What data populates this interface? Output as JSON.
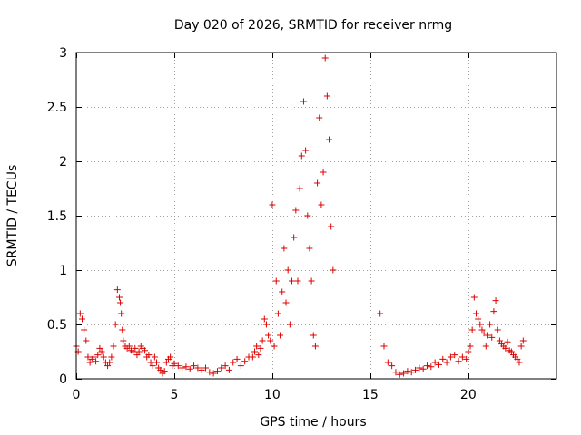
{
  "chart_data": {
    "type": "scatter",
    "title": "Day 020 of 2026, SRMTID for receiver nrmg",
    "xlabel": "GPS time / hours",
    "ylabel": "SRMTID / TECUs",
    "xlim": [
      0,
      24.5
    ],
    "ylim": [
      0,
      3
    ],
    "xticks": [
      0,
      5,
      10,
      15,
      20
    ],
    "xtick_labels": [
      "0",
      "5",
      "10",
      "15",
      "20"
    ],
    "yticks": [
      0,
      0.5,
      1,
      1.5,
      2,
      2.5,
      3
    ],
    "ytick_labels": [
      "0",
      "0.5",
      "1",
      "1.5",
      "2",
      "2.5",
      "3"
    ],
    "grid": true,
    "marker": "plus",
    "color": "#dd0000",
    "series": [
      {
        "name": "SRMTID",
        "x": [
          0.0,
          0.1,
          0.2,
          0.3,
          0.4,
          0.5,
          0.6,
          0.7,
          0.8,
          0.9,
          1.0,
          1.1,
          1.2,
          1.3,
          1.4,
          1.5,
          1.6,
          1.7,
          1.8,
          1.9,
          2.0,
          2.1,
          2.2,
          2.25,
          2.3,
          2.35,
          2.4,
          2.5,
          2.6,
          2.7,
          2.8,
          2.9,
          3.0,
          3.1,
          3.2,
          3.3,
          3.4,
          3.5,
          3.6,
          3.7,
          3.8,
          3.9,
          4.0,
          4.1,
          4.2,
          4.3,
          4.4,
          4.5,
          4.6,
          4.7,
          4.8,
          4.9,
          5.0,
          5.2,
          5.4,
          5.6,
          5.8,
          6.0,
          6.2,
          6.4,
          6.6,
          6.8,
          7.0,
          7.2,
          7.4,
          7.6,
          7.8,
          8.0,
          8.2,
          8.4,
          8.6,
          8.8,
          9.0,
          9.1,
          9.2,
          9.3,
          9.4,
          9.5,
          9.6,
          9.7,
          9.8,
          9.9,
          10.0,
          10.1,
          10.2,
          10.3,
          10.4,
          10.5,
          10.6,
          10.7,
          10.8,
          10.9,
          11.0,
          11.1,
          11.2,
          11.3,
          11.4,
          11.5,
          11.6,
          11.7,
          11.8,
          11.9,
          12.0,
          12.1,
          12.2,
          12.3,
          12.4,
          12.5,
          12.6,
          12.7,
          12.8,
          12.9,
          13.0,
          13.1,
          15.5,
          15.7,
          15.9,
          16.1,
          16.3,
          16.5,
          16.7,
          16.9,
          17.1,
          17.3,
          17.5,
          17.7,
          17.9,
          18.1,
          18.3,
          18.5,
          18.7,
          18.9,
          19.1,
          19.3,
          19.5,
          19.7,
          19.9,
          20.0,
          20.1,
          20.2,
          20.3,
          20.4,
          20.5,
          20.6,
          20.7,
          20.8,
          20.9,
          21.0,
          21.1,
          21.2,
          21.3,
          21.4,
          21.5,
          21.6,
          21.7,
          21.8,
          21.9,
          22.0,
          22.1,
          22.2,
          22.3,
          22.4,
          22.5,
          22.6,
          22.7,
          22.8
        ],
        "y": [
          0.3,
          0.25,
          0.6,
          0.55,
          0.45,
          0.35,
          0.2,
          0.15,
          0.18,
          0.2,
          0.16,
          0.22,
          0.28,
          0.25,
          0.2,
          0.15,
          0.12,
          0.15,
          0.2,
          0.3,
          0.5,
          0.82,
          0.75,
          0.7,
          0.6,
          0.45,
          0.35,
          0.3,
          0.28,
          0.3,
          0.26,
          0.25,
          0.28,
          0.22,
          0.25,
          0.3,
          0.28,
          0.26,
          0.2,
          0.22,
          0.15,
          0.12,
          0.2,
          0.15,
          0.1,
          0.08,
          0.05,
          0.07,
          0.15,
          0.18,
          0.2,
          0.12,
          0.14,
          0.12,
          0.1,
          0.11,
          0.09,
          0.12,
          0.1,
          0.08,
          0.1,
          0.06,
          0.05,
          0.07,
          0.1,
          0.12,
          0.08,
          0.15,
          0.18,
          0.12,
          0.16,
          0.2,
          0.2,
          0.25,
          0.3,
          0.22,
          0.28,
          0.35,
          0.55,
          0.5,
          0.4,
          0.35,
          1.6,
          0.3,
          0.9,
          0.6,
          0.4,
          0.8,
          1.2,
          0.7,
          1.0,
          0.5,
          0.9,
          1.3,
          1.55,
          0.9,
          1.75,
          2.05,
          2.55,
          2.1,
          1.5,
          1.2,
          0.9,
          0.4,
          0.3,
          1.8,
          2.4,
          1.6,
          1.9,
          2.95,
          2.6,
          2.2,
          1.4,
          1.0,
          0.6,
          0.3,
          0.15,
          0.12,
          0.06,
          0.04,
          0.05,
          0.07,
          0.06,
          0.08,
          0.1,
          0.09,
          0.12,
          0.11,
          0.15,
          0.13,
          0.18,
          0.15,
          0.2,
          0.22,
          0.16,
          0.2,
          0.18,
          0.25,
          0.3,
          0.45,
          0.75,
          0.6,
          0.55,
          0.5,
          0.45,
          0.42,
          0.3,
          0.4,
          0.5,
          0.38,
          0.62,
          0.72,
          0.45,
          0.35,
          0.32,
          0.3,
          0.28,
          0.34,
          0.26,
          0.25,
          0.22,
          0.2,
          0.18,
          0.15,
          0.3,
          0.35
        ]
      }
    ]
  }
}
